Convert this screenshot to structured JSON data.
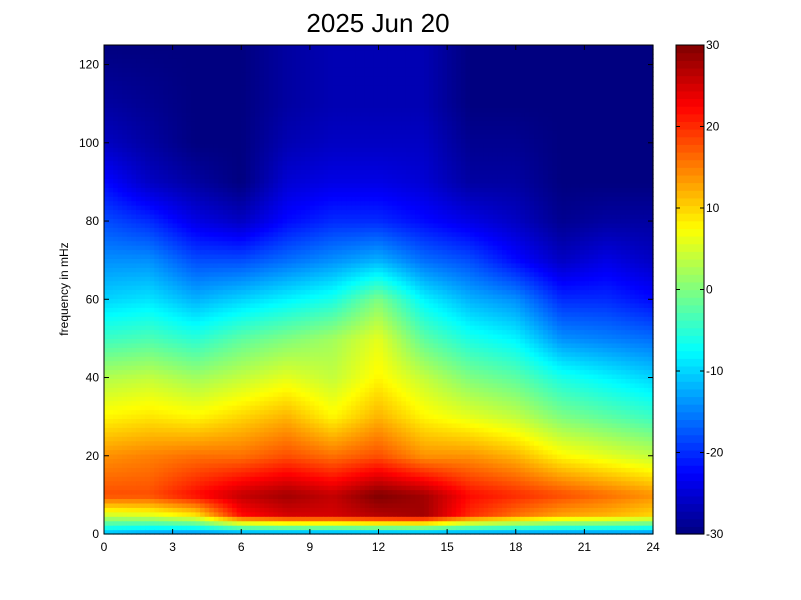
{
  "chart_data": {
    "type": "heatmap",
    "title": "2025 Jun 20",
    "xlabel": "",
    "ylabel": "frequency in mHz",
    "xlim": [
      0,
      24
    ],
    "ylim": [
      0,
      125
    ],
    "x_ticks": [
      "0",
      "3",
      "6",
      "9",
      "12",
      "15",
      "18",
      "21",
      "24"
    ],
    "x_tick_values": [
      0,
      3,
      6,
      9,
      12,
      15,
      18,
      21,
      24
    ],
    "y_ticks": [
      "0",
      "20",
      "40",
      "60",
      "80",
      "100",
      "120"
    ],
    "y_tick_values": [
      0,
      20,
      40,
      60,
      80,
      100,
      120
    ],
    "colorbar": {
      "min": -30,
      "max": 30,
      "ticks": [
        "-30",
        "-20",
        "-10",
        "0",
        "10",
        "20",
        "30"
      ],
      "tick_values": [
        -30,
        -20,
        -10,
        0,
        10,
        20,
        30
      ],
      "colormap": "jet"
    },
    "time_axis_hours": [
      0,
      2,
      4,
      6,
      8,
      10,
      12,
      14,
      16,
      18,
      20,
      22,
      24
    ],
    "frequency_axis_mHz": [
      0,
      5,
      10,
      20,
      30,
      40,
      50,
      60,
      70,
      80,
      90,
      100,
      110,
      125
    ],
    "values_dB": [
      [
        -12,
        5,
        18,
        14,
        8,
        3,
        -4,
        -10,
        -14,
        -18,
        -22,
        -26,
        -28,
        -30
      ],
      [
        -14,
        6,
        18,
        15,
        9,
        4,
        -3,
        -9,
        -14,
        -20,
        -26,
        -28,
        -29,
        -30
      ],
      [
        -15,
        9,
        22,
        16,
        8,
        2,
        -5,
        -12,
        -18,
        -24,
        -28,
        -30,
        -30,
        -30
      ],
      [
        -15,
        22,
        26,
        16,
        10,
        4,
        -2,
        -10,
        -18,
        -26,
        -30,
        -30,
        -30,
        -30
      ],
      [
        -15,
        25,
        28,
        18,
        12,
        6,
        0,
        -8,
        -16,
        -22,
        -25,
        -27,
        -28,
        -28
      ],
      [
        -15,
        25,
        26,
        16,
        8,
        4,
        2,
        -6,
        -14,
        -20,
        -24,
        -26,
        -27,
        -27
      ],
      [
        -15,
        27,
        30,
        18,
        12,
        8,
        6,
        0,
        -12,
        -20,
        -24,
        -26,
        -27,
        -27
      ],
      [
        -15,
        28,
        28,
        14,
        8,
        4,
        -2,
        -8,
        -16,
        -22,
        -25,
        -26,
        -27,
        -27
      ],
      [
        -15,
        20,
        22,
        14,
        6,
        0,
        -6,
        -12,
        -18,
        -24,
        -28,
        -29,
        -30,
        -30
      ],
      [
        -15,
        16,
        20,
        12,
        4,
        -2,
        -8,
        -14,
        -22,
        -26,
        -28,
        -29,
        -30,
        -30
      ],
      [
        -15,
        13,
        18,
        8,
        0,
        -6,
        -14,
        -20,
        -26,
        -29,
        -30,
        -30,
        -30,
        -30
      ],
      [
        -15,
        12,
        16,
        6,
        -2,
        -8,
        -15,
        -20,
        -24,
        -28,
        -30,
        -30,
        -30,
        -30
      ],
      [
        -15,
        10,
        14,
        4,
        -4,
        -10,
        -16,
        -22,
        -26,
        -28,
        -30,
        -30,
        -30,
        -30
      ]
    ]
  }
}
